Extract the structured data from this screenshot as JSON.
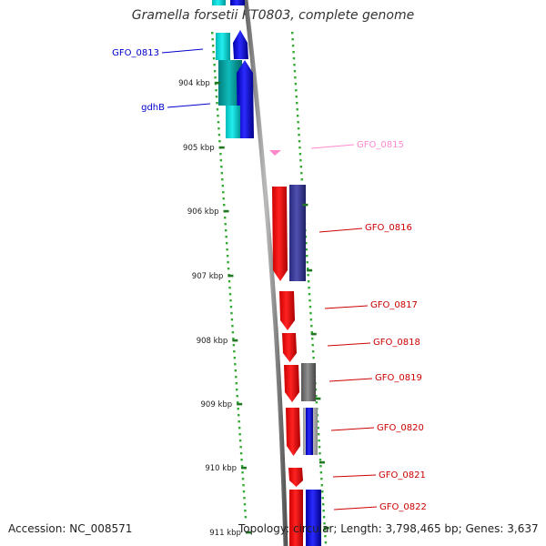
{
  "title": "Gramella forsetii KT0803, complete genome",
  "accession": "Accession: NC_008571",
  "topology": "Topology: circular; Length: 3,798,465 bp; Genes: 3,637",
  "colors": {
    "backbone": "#8a8a8a",
    "tick_major": "#227722",
    "tick_minor": "#33aa33",
    "cds_forward": "#ff0000",
    "cds_reverse": "#0000ee",
    "hypothetical": "#00dddd",
    "cog_navy": "#3a3a99",
    "cog_gray": "#777777",
    "rna_pink": "#ff88cc",
    "label_blue": "#0000cc",
    "label_red": "#cc0000",
    "label_pink": "#ff88cc"
  },
  "ruler": [
    {
      "label": "904 kbp"
    },
    {
      "label": "905 kbp"
    },
    {
      "label": "906 kbp"
    },
    {
      "label": "907 kbp"
    },
    {
      "label": "908 kbp"
    },
    {
      "label": "909 kbp"
    },
    {
      "label": "910 kbp"
    },
    {
      "label": "911 kbp"
    }
  ],
  "genes": [
    {
      "label": "GFO_0813",
      "color_key": "label_blue"
    },
    {
      "label": "gdhB",
      "color_key": "label_blue"
    },
    {
      "label": "GFO_0815",
      "color_key": "label_pink"
    },
    {
      "label": "GFO_0816",
      "color_key": "label_red"
    },
    {
      "label": "GFO_0817",
      "color_key": "label_red"
    },
    {
      "label": "GFO_0818",
      "color_key": "label_red"
    },
    {
      "label": "GFO_0819",
      "color_key": "label_red"
    },
    {
      "label": "GFO_0820",
      "color_key": "label_red"
    },
    {
      "label": "GFO_0821",
      "color_key": "label_red"
    },
    {
      "label": "GFO_0822",
      "color_key": "label_red"
    }
  ]
}
